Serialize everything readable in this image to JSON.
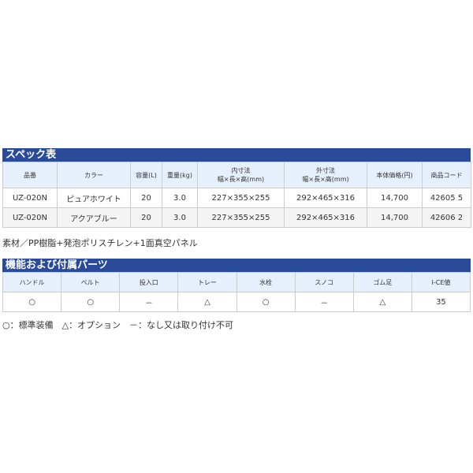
{
  "spec": {
    "title": "スペック表",
    "headers": [
      "品番",
      "カラー",
      "容量(L)",
      "重量(kg)",
      "内寸法\n幅×長×高(mm)",
      "外寸法\n幅×長×高(mm)",
      "本体価格(円)",
      "商品コード"
    ],
    "rows": [
      [
        "UZ-020N",
        "ピュアホワイト",
        "20",
        "3.0",
        "227×355×255",
        "292×465×316",
        "14,700",
        "42605 5"
      ],
      [
        "UZ-020N",
        "アクアブルー",
        "20",
        "3.0",
        "227×355×255",
        "292×465×316",
        "14,700",
        "42606 2"
      ]
    ]
  },
  "material": "素材／PP樹脂+発泡ポリスチレン+1面真空パネル",
  "parts": {
    "title": "機能および付属パーツ",
    "headers": [
      "ハンドル",
      "ベルト",
      "投入口",
      "トレー",
      "水栓",
      "スノコ",
      "ゴム足",
      "I-CE値"
    ],
    "values": [
      "○",
      "○",
      "－",
      "△",
      "○",
      "－",
      "△",
      "35"
    ]
  },
  "legend": "○：標準装備　△：オプション　－：なし又は取り付け不可"
}
